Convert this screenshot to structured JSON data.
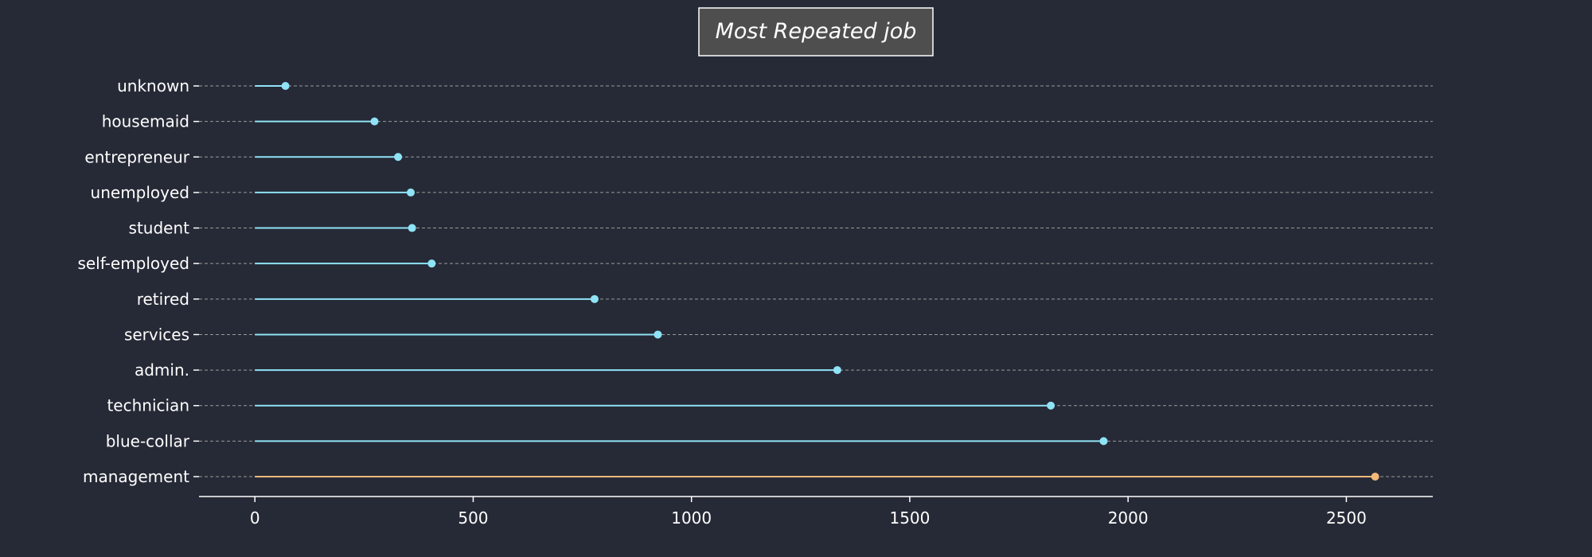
{
  "chart_data": {
    "type": "lollipop",
    "title": "Most Repeated job",
    "categories": [
      "unknown",
      "housemaid",
      "entrepreneur",
      "unemployed",
      "student",
      "self-employed",
      "retired",
      "services",
      "admin.",
      "technician",
      "blue-collar",
      "management"
    ],
    "values": [
      70,
      274,
      328,
      357,
      360,
      405,
      778,
      923,
      1334,
      1823,
      1944,
      2566
    ],
    "highlight_index": 11,
    "xlim": [
      -128,
      2698
    ],
    "xticks": [
      0,
      500,
      1000,
      1500,
      2000,
      2500
    ],
    "xlabel": "",
    "ylabel": "",
    "grid": "horizontal dashed",
    "colors": {
      "background": "#262a36",
      "text": "#ffffff",
      "default": "#8fe3f6",
      "highlight": "#f4b87a",
      "grid": "#9a9a9a",
      "title_box": "#4e4e4e"
    }
  }
}
